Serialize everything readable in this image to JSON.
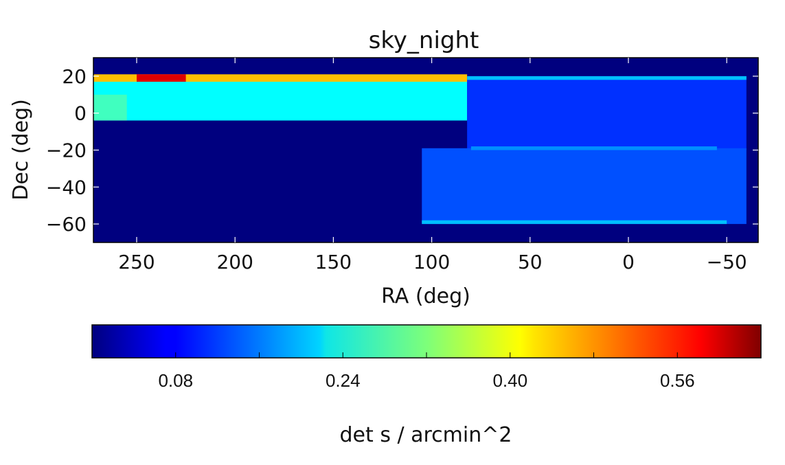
{
  "chart_data": {
    "type": "heatmap",
    "title": "sky_night",
    "xlabel": "RA (deg)",
    "ylabel": "Dec (deg)",
    "xlim": [
      272,
      -66
    ],
    "ylim": [
      -70,
      30
    ],
    "x_ticks": [
      {
        "value": 250,
        "label": "250"
      },
      {
        "value": 200,
        "label": "200"
      },
      {
        "value": 150,
        "label": "150"
      },
      {
        "value": 100,
        "label": "100"
      },
      {
        "value": 50,
        "label": "50"
      },
      {
        "value": 0,
        "label": "0"
      },
      {
        "value": -50,
        "label": "−50"
      }
    ],
    "y_ticks": [
      {
        "value": 20,
        "label": "20"
      },
      {
        "value": 0,
        "label": "0"
      },
      {
        "value": -20,
        "label": "−20"
      },
      {
        "value": -40,
        "label": "−40"
      },
      {
        "value": -60,
        "label": "−60"
      }
    ],
    "background_value": 0.0,
    "regions": [
      {
        "ra": [
          272,
          82
        ],
        "dec": [
          -4,
          20
        ],
        "value": 0.24
      },
      {
        "ra": [
          272,
          82
        ],
        "dec": [
          17,
          21
        ],
        "value": 0.44
      },
      {
        "ra": [
          250,
          225
        ],
        "dec": [
          17,
          21
        ],
        "value": 0.58
      },
      {
        "ra": [
          272,
          255
        ],
        "dec": [
          -4,
          10
        ],
        "value": 0.28
      },
      {
        "ra": [
          82,
          -60
        ],
        "dec": [
          -20,
          20
        ],
        "value": 0.11
      },
      {
        "ra": [
          105,
          -60
        ],
        "dec": [
          -60,
          -19
        ],
        "value": 0.13
      },
      {
        "ra": [
          82,
          -60
        ],
        "dec": [
          18,
          20
        ],
        "value": 0.2
      },
      {
        "ra": [
          80,
          -45
        ],
        "dec": [
          -20,
          -18
        ],
        "value": 0.17
      },
      {
        "ra": [
          105,
          -50
        ],
        "dec": [
          -60,
          -58
        ],
        "value": 0.2
      }
    ],
    "colorbar": {
      "label": "det s / arcmin^2",
      "range": [
        0.0,
        0.64
      ],
      "colormap": "jet",
      "ticks": [
        {
          "value": 0.08,
          "label": "0.08"
        },
        {
          "value": 0.24,
          "label": "0.24"
        },
        {
          "value": 0.4,
          "label": "0.40"
        },
        {
          "value": 0.56,
          "label": "0.56"
        }
      ],
      "minor_ticks": [
        0.0,
        0.16,
        0.32,
        0.48,
        0.64
      ]
    }
  }
}
